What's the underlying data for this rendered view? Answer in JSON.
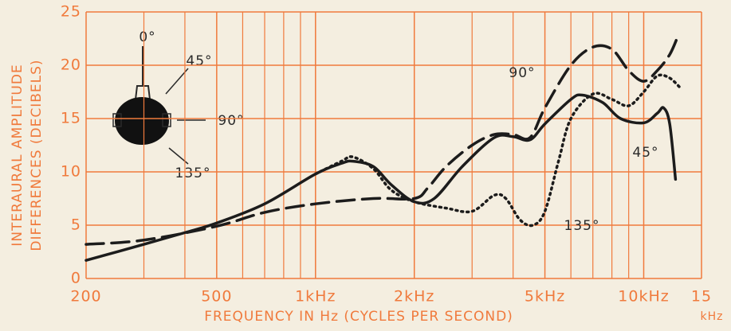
{
  "chart_data": {
    "type": "line",
    "ylabel": [
      "INTERAURAL AMPLITUDE",
      "DIFFERENCES (DECIBELS)"
    ],
    "xlabel": "FREQUENCY IN Hz (CYCLES PER SECOND)",
    "x_unit_note": "kHz",
    "xscale": "log",
    "xlim": [
      200,
      15000
    ],
    "ylim": [
      0,
      25
    ],
    "xticks": [
      200,
      500,
      {
        "value": 1000,
        "label": "1kHz"
      },
      {
        "value": 2000,
        "label": "2kHz"
      },
      {
        "value": 5000,
        "label": "5kHz"
      },
      {
        "value": 10000,
        "label": "10kHz"
      },
      {
        "value": 15000,
        "label": "15"
      }
    ],
    "xminor": [
      300,
      400,
      600,
      700,
      800,
      900,
      3000,
      4000,
      6000,
      7000,
      8000,
      9000
    ],
    "yticks": [
      0,
      5,
      10,
      15,
      20,
      25
    ],
    "grid": true,
    "grid_color": "#f07a3c",
    "head_diagram_labels": [
      "0°",
      "45°",
      "90°",
      "135°"
    ],
    "series": [
      {
        "name": "45°",
        "color": "#1c1c1c",
        "dash": "solid",
        "x": [
          200,
          300,
          400,
          500,
          700,
          1000,
          1200,
          1300,
          1500,
          1700,
          2000,
          2300,
          2800,
          3500,
          4000,
          4500,
          5000,
          6000,
          6500,
          7500,
          8500,
          10000,
          11000,
          11500,
          12000,
          12500
        ],
        "values": [
          1.7,
          3.2,
          4.3,
          5.2,
          7,
          9.8,
          10.8,
          11,
          10.5,
          8.8,
          7.2,
          7.5,
          10.5,
          13.2,
          13.3,
          13,
          14.5,
          16.8,
          17.2,
          16.5,
          15,
          14.6,
          15.5,
          16,
          14.5,
          9.3
        ]
      },
      {
        "name": "90°",
        "color": "#1c1c1c",
        "dash": "dashed",
        "x": [
          200,
          300,
          500,
          700,
          1000,
          1500,
          2000,
          2200,
          2500,
          3000,
          3500,
          4000,
          4500,
          5000,
          6000,
          7000,
          8000,
          9000,
          10000,
          11000,
          12000,
          12700
        ],
        "values": [
          3.2,
          3.6,
          4.9,
          6.2,
          7,
          7.5,
          7.5,
          8.5,
          10.5,
          12.5,
          13.5,
          13.5,
          13.2,
          16,
          20,
          21.7,
          21.5,
          19.5,
          18.5,
          19.5,
          21,
          22.7
        ]
      },
      {
        "name": "135°",
        "color": "#1c1c1c",
        "dash": "dotted",
        "x": [
          1000,
          1200,
          1300,
          1500,
          1700,
          2000,
          2500,
          3000,
          3500,
          3800,
          4200,
          4600,
          5000,
          5500,
          6000,
          7000,
          8000,
          9000,
          10000,
          11000,
          12000,
          13000
        ],
        "values": [
          9.8,
          11,
          11.4,
          10.3,
          8.3,
          7.2,
          6.6,
          6.3,
          7.8,
          7.5,
          5.5,
          5.0,
          6.3,
          11,
          15,
          17.3,
          16.8,
          16.2,
          17.5,
          19,
          18.8,
          17.8
        ]
      }
    ]
  }
}
